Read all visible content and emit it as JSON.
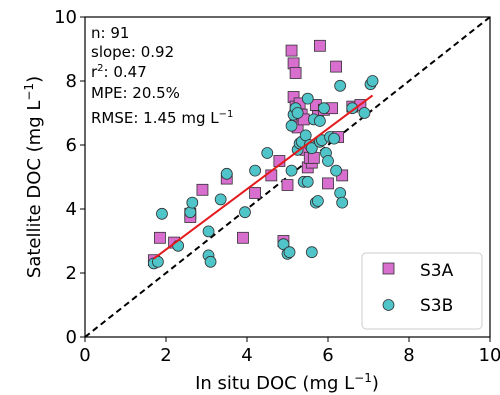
{
  "chart_data": {
    "type": "scatter",
    "xlabel": "In situ DOC (mg L",
    "xlabel_unit_exp": "−1",
    "xlabel_close": ")",
    "ylabel": "Satellite DOC (mg L",
    "ylabel_unit_exp": "−1",
    "ylabel_close": ")",
    "xlim": [
      0,
      10
    ],
    "ylim": [
      0,
      10
    ],
    "xticks": [
      "0",
      "2",
      "4",
      "6",
      "8",
      "10"
    ],
    "yticks": [
      "0",
      "2",
      "4",
      "6",
      "8",
      "10"
    ],
    "grid": false,
    "legend": "bottom-right",
    "one_to_one_line": {
      "from": [
        0,
        0
      ],
      "to": [
        10,
        10
      ],
      "color": "#000000",
      "style": "dashed"
    },
    "regression_line": {
      "from": [
        1.7,
        2.45
      ],
      "to": [
        7.1,
        7.55
      ],
      "color": "#e41a1c"
    },
    "stats": {
      "n": "n: 91",
      "slope": "slope: 0.92",
      "r2_base": "r",
      "r2_exp": "2",
      "r2_val": ": 0.47",
      "mpe": "MPE: 20.5%",
      "rmse": "RMSE: 1.45 mg L",
      "rmse_exp": "−1"
    },
    "series": [
      {
        "name": "S3A",
        "marker": "square",
        "color": "#d86fcf",
        "points": [
          [
            1.7,
            2.4
          ],
          [
            1.85,
            3.1
          ],
          [
            2.2,
            2.95
          ],
          [
            2.6,
            3.85
          ],
          [
            2.6,
            3.75
          ],
          [
            2.9,
            4.6
          ],
          [
            3.5,
            4.95
          ],
          [
            3.9,
            3.1
          ],
          [
            4.2,
            4.5
          ],
          [
            4.6,
            5.05
          ],
          [
            4.8,
            5.5
          ],
          [
            4.9,
            3.0
          ],
          [
            5.0,
            4.75
          ],
          [
            5.1,
            8.95
          ],
          [
            5.15,
            8.55
          ],
          [
            5.2,
            8.25
          ],
          [
            5.15,
            7.5
          ],
          [
            5.2,
            7.2
          ],
          [
            5.2,
            6.95
          ],
          [
            5.2,
            6.7
          ],
          [
            5.25,
            6.55
          ],
          [
            5.3,
            7.3
          ],
          [
            5.35,
            6.95
          ],
          [
            5.4,
            6.8
          ],
          [
            5.45,
            5.85
          ],
          [
            5.5,
            5.3
          ],
          [
            5.6,
            5.45
          ],
          [
            5.7,
            7.25
          ],
          [
            5.75,
            6.9
          ],
          [
            5.8,
            9.1
          ],
          [
            5.9,
            7.1
          ],
          [
            6.0,
            4.8
          ],
          [
            6.1,
            7.15
          ],
          [
            6.2,
            8.45
          ],
          [
            6.25,
            6.25
          ],
          [
            6.35,
            5.05
          ],
          [
            6.6,
            7.2
          ],
          [
            6.8,
            7.25
          ],
          [
            5.55,
            5.6
          ],
          [
            5.65,
            5.6
          ]
        ]
      },
      {
        "name": "S3B",
        "marker": "circle",
        "color": "#4fc4c9",
        "points": [
          [
            1.7,
            2.3
          ],
          [
            1.8,
            2.35
          ],
          [
            1.9,
            3.85
          ],
          [
            2.3,
            2.85
          ],
          [
            2.6,
            3.9
          ],
          [
            2.65,
            4.2
          ],
          [
            3.05,
            3.3
          ],
          [
            3.05,
            2.55
          ],
          [
            3.1,
            2.35
          ],
          [
            3.35,
            4.3
          ],
          [
            3.5,
            5.1
          ],
          [
            3.95,
            3.9
          ],
          [
            4.2,
            5.2
          ],
          [
            4.5,
            5.75
          ],
          [
            4.9,
            2.9
          ],
          [
            5.0,
            2.6
          ],
          [
            5.05,
            2.65
          ],
          [
            5.1,
            6.6
          ],
          [
            5.1,
            5.2
          ],
          [
            5.15,
            6.95
          ],
          [
            5.2,
            7.15
          ],
          [
            5.25,
            5.85
          ],
          [
            5.3,
            6.05
          ],
          [
            5.35,
            6.1
          ],
          [
            5.4,
            4.85
          ],
          [
            5.45,
            6.3
          ],
          [
            5.5,
            4.85
          ],
          [
            5.5,
            7.45
          ],
          [
            5.55,
            6.0
          ],
          [
            5.6,
            2.65
          ],
          [
            5.6,
            5.9
          ],
          [
            5.65,
            6.8
          ],
          [
            5.7,
            4.2
          ],
          [
            5.75,
            4.25
          ],
          [
            5.8,
            6.75
          ],
          [
            5.8,
            6.1
          ],
          [
            5.85,
            6.15
          ],
          [
            5.9,
            7.15
          ],
          [
            5.95,
            5.75
          ],
          [
            6.0,
            5.5
          ],
          [
            6.05,
            6.25
          ],
          [
            6.15,
            6.2
          ],
          [
            6.2,
            5.2
          ],
          [
            6.3,
            4.5
          ],
          [
            6.35,
            4.2
          ],
          [
            6.6,
            7.15
          ],
          [
            6.9,
            7.0
          ],
          [
            7.05,
            7.9
          ],
          [
            7.1,
            8.0
          ],
          [
            5.25,
            7.0
          ],
          [
            6.3,
            7.85
          ]
        ]
      }
    ]
  }
}
